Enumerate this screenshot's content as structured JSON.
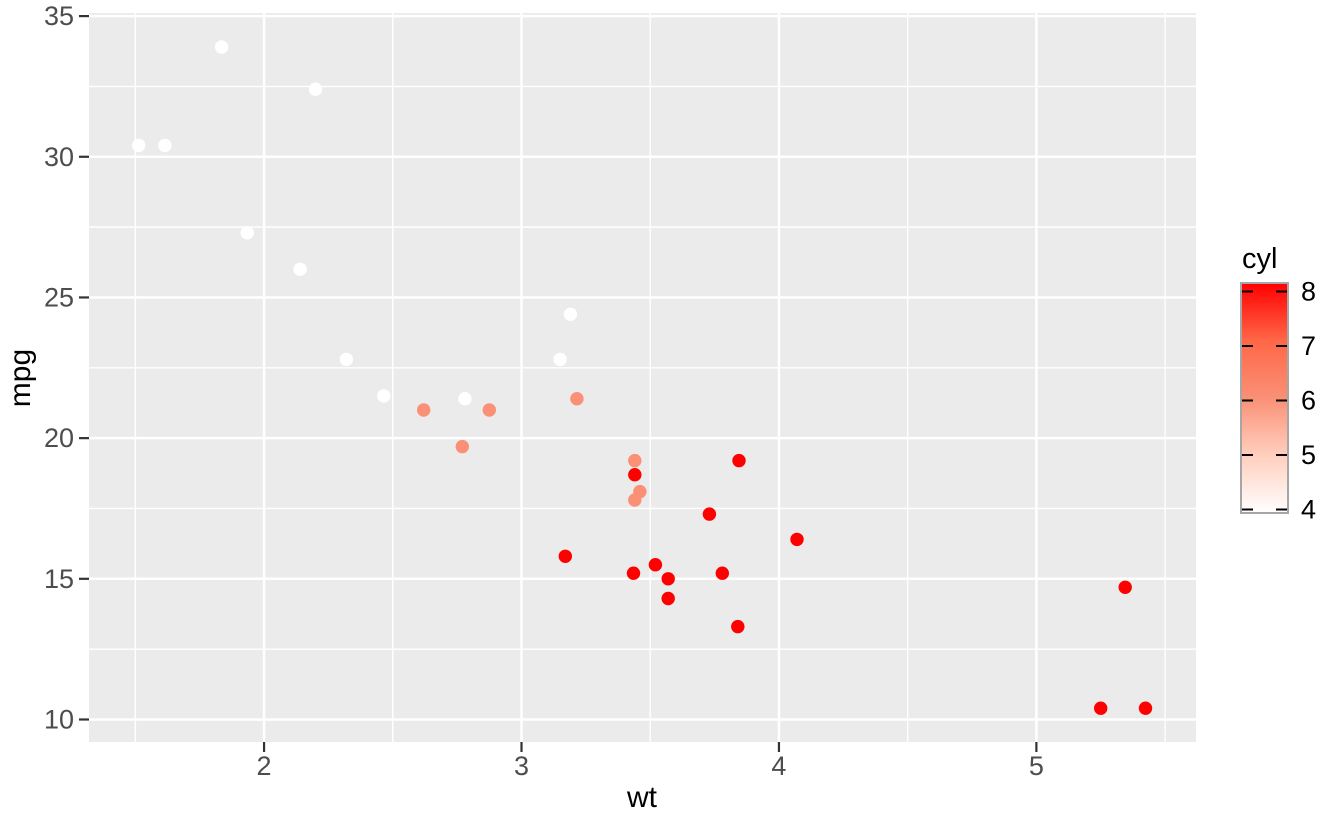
{
  "chart_data": {
    "type": "scatter",
    "title": "",
    "xlabel": "wt",
    "ylabel": "mpg",
    "xlim": [
      1.32,
      5.62
    ],
    "ylim": [
      9.2,
      35.11
    ],
    "x_major_ticks": [
      2,
      3,
      4,
      5
    ],
    "x_minor_ticks": [
      1.5,
      2.5,
      3.5,
      4.5,
      5.5
    ],
    "y_major_ticks": [
      10,
      15,
      20,
      25,
      30,
      35
    ],
    "y_minor_ticks": [
      12.5,
      17.5,
      22.5,
      27.5,
      32.5
    ],
    "grid": true,
    "panel_bg": "#EBEBEB",
    "grid_color": "#FFFFFF",
    "tick_mark_color": "#333333",
    "tick_label_color": "#4D4D4D",
    "point_radius": 6.7,
    "color_map": {
      "4": "#FFFFFF",
      "6": "#FA9076",
      "8": "#FF0000"
    },
    "legend": {
      "title": "cyl",
      "position": "right",
      "style": "colorbar",
      "ticks": [
        8,
        7,
        6,
        5,
        4
      ],
      "gradient_stops": {
        "8": "#FF0000",
        "7": "#FF6747",
        "6": "#FA9076",
        "5": "#FFCFBE",
        "4": "#FFFFFF"
      },
      "frame_color": "#A6A6A6",
      "tick_color": "#000000"
    },
    "points": [
      {
        "wt": 2.62,
        "mpg": 21.0,
        "cyl": 6
      },
      {
        "wt": 2.875,
        "mpg": 21.0,
        "cyl": 6
      },
      {
        "wt": 2.32,
        "mpg": 22.8,
        "cyl": 4
      },
      {
        "wt": 3.215,
        "mpg": 21.4,
        "cyl": 6
      },
      {
        "wt": 3.44,
        "mpg": 18.7,
        "cyl": 8
      },
      {
        "wt": 3.46,
        "mpg": 18.1,
        "cyl": 6
      },
      {
        "wt": 3.57,
        "mpg": 14.3,
        "cyl": 8
      },
      {
        "wt": 3.19,
        "mpg": 24.4,
        "cyl": 4
      },
      {
        "wt": 3.15,
        "mpg": 22.8,
        "cyl": 4
      },
      {
        "wt": 3.44,
        "mpg": 19.2,
        "cyl": 6
      },
      {
        "wt": 3.44,
        "mpg": 17.8,
        "cyl": 6
      },
      {
        "wt": 4.07,
        "mpg": 16.4,
        "cyl": 8
      },
      {
        "wt": 3.73,
        "mpg": 17.3,
        "cyl": 8
      },
      {
        "wt": 3.78,
        "mpg": 15.2,
        "cyl": 8
      },
      {
        "wt": 5.25,
        "mpg": 10.4,
        "cyl": 8
      },
      {
        "wt": 5.424,
        "mpg": 10.4,
        "cyl": 8
      },
      {
        "wt": 5.345,
        "mpg": 14.7,
        "cyl": 8
      },
      {
        "wt": 2.2,
        "mpg": 32.4,
        "cyl": 4
      },
      {
        "wt": 1.615,
        "mpg": 30.4,
        "cyl": 4
      },
      {
        "wt": 1.835,
        "mpg": 33.9,
        "cyl": 4
      },
      {
        "wt": 2.465,
        "mpg": 21.5,
        "cyl": 4
      },
      {
        "wt": 3.52,
        "mpg": 15.5,
        "cyl": 8
      },
      {
        "wt": 3.435,
        "mpg": 15.2,
        "cyl": 8
      },
      {
        "wt": 3.84,
        "mpg": 13.3,
        "cyl": 8
      },
      {
        "wt": 3.845,
        "mpg": 19.2,
        "cyl": 8
      },
      {
        "wt": 1.935,
        "mpg": 27.3,
        "cyl": 4
      },
      {
        "wt": 2.14,
        "mpg": 26.0,
        "cyl": 4
      },
      {
        "wt": 1.513,
        "mpg": 30.4,
        "cyl": 4
      },
      {
        "wt": 3.17,
        "mpg": 15.8,
        "cyl": 8
      },
      {
        "wt": 2.77,
        "mpg": 19.7,
        "cyl": 6
      },
      {
        "wt": 3.57,
        "mpg": 15.0,
        "cyl": 8
      },
      {
        "wt": 2.78,
        "mpg": 21.4,
        "cyl": 4
      }
    ]
  }
}
